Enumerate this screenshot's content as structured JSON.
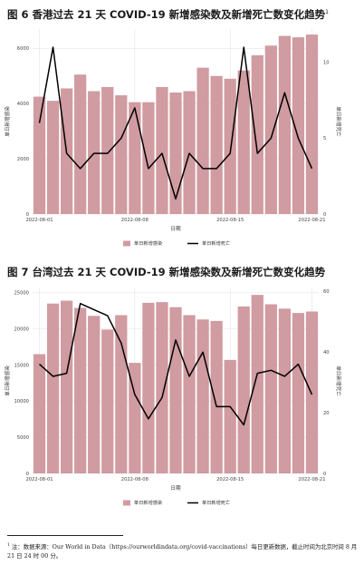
{
  "figures": [
    {
      "title": "图 6 香港过去 21 天 COVID-19 新增感染数及新增死亡数变化趋势",
      "footnote_mark": "1"
    },
    {
      "title": "图 7 台湾过去 21 天 COVID-19 新增感染数及新增死亡数变化趋势",
      "footnote_mark": ""
    }
  ],
  "footnote": {
    "mark": "1",
    "text": "注：数据来源：Our World in Data（https://ourworldindata.org/covid-vaccinations）每日更新数据，截止时间为北京时间 8 月 21 日 24 时 00 分。"
  },
  "colors": {
    "bar": "#d09ba1",
    "line": "#000000",
    "grid": "#e3e3e3"
  },
  "chart_data": [
    {
      "type": "bar",
      "dates": [
        "2022-08-01",
        "2022-08-02",
        "2022-08-03",
        "2022-08-04",
        "2022-08-05",
        "2022-08-06",
        "2022-08-07",
        "2022-08-08",
        "2022-08-09",
        "2022-08-10",
        "2022-08-11",
        "2022-08-12",
        "2022-08-13",
        "2022-08-14",
        "2022-08-15",
        "2022-08-16",
        "2022-08-17",
        "2022-08-18",
        "2022-08-19",
        "2022-08-20",
        "2022-08-21"
      ],
      "xticks": [
        "2022-08-01",
        "2022-08-08",
        "2022-08-15",
        "2022-08-21"
      ],
      "xlabel": "日期",
      "ylabel": "单日新增感染",
      "ylabel_right": "单日新增死亡",
      "ylim": [
        0,
        6700
      ],
      "yticks": [
        0,
        2000,
        4000,
        6000
      ],
      "ylim_right": [
        0,
        12.2
      ],
      "yticks_right": [
        0,
        5,
        10
      ],
      "grid": true,
      "legend_position": "bottom",
      "series": [
        {
          "name": "单日新增感染",
          "type": "bar",
          "values": [
            4250,
            4100,
            4550,
            5050,
            4450,
            4600,
            4300,
            4050,
            4050,
            4600,
            4400,
            4450,
            5300,
            5000,
            4900,
            5200,
            5750,
            6100,
            6450,
            6400,
            6500
          ]
        },
        {
          "name": "单日新增死亡",
          "type": "line",
          "axis": "right",
          "values": [
            6,
            11,
            4,
            3,
            4,
            4,
            5,
            7,
            3,
            4,
            1,
            4,
            3,
            3,
            4,
            11,
            4,
            5,
            8,
            5,
            3
          ]
        }
      ]
    },
    {
      "type": "bar",
      "dates": [
        "2022-08-01",
        "2022-08-02",
        "2022-08-03",
        "2022-08-04",
        "2022-08-05",
        "2022-08-06",
        "2022-08-07",
        "2022-08-08",
        "2022-08-09",
        "2022-08-10",
        "2022-08-11",
        "2022-08-12",
        "2022-08-13",
        "2022-08-14",
        "2022-08-15",
        "2022-08-16",
        "2022-08-17",
        "2022-08-18",
        "2022-08-19",
        "2022-08-20",
        "2022-08-21"
      ],
      "xticks": [
        "2022-08-01",
        "2022-08-08",
        "2022-08-15",
        "2022-08-21"
      ],
      "xlabel": "日期",
      "ylabel": "单日新增感染",
      "ylabel_right": "单日新增死亡",
      "ylim": [
        0,
        25600
      ],
      "yticks": [
        0,
        5000,
        10000,
        15000,
        20000,
        25000
      ],
      "ylim_right": [
        0,
        61
      ],
      "yticks_right": [
        0,
        20,
        40,
        60
      ],
      "grid": true,
      "legend_position": "bottom",
      "series": [
        {
          "name": "单日新增感染",
          "type": "bar",
          "values": [
            16500,
            23500,
            23900,
            22900,
            21800,
            19900,
            21900,
            15300,
            23600,
            23700,
            23000,
            21900,
            21300,
            21100,
            15700,
            23100,
            24700,
            23400,
            22800,
            22200,
            22400
          ]
        },
        {
          "name": "单日新增死亡",
          "type": "line",
          "axis": "right",
          "values": [
            36,
            32,
            33,
            56,
            54,
            52,
            43,
            26,
            18,
            25,
            44,
            32,
            40,
            22,
            22,
            16,
            33,
            34,
            32,
            36,
            26
          ]
        }
      ]
    }
  ]
}
